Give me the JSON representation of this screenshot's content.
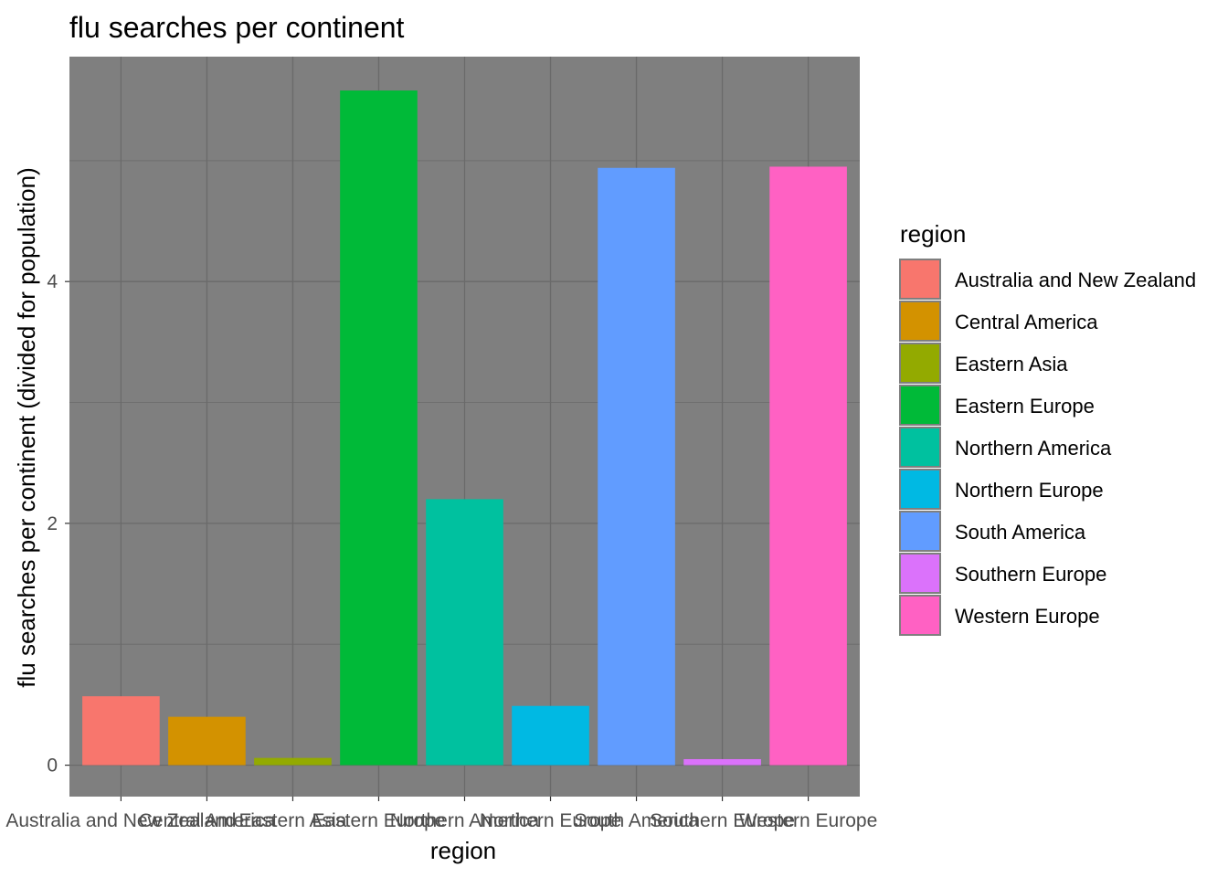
{
  "chart_data": {
    "type": "bar",
    "title": "flu searches per continent",
    "xlabel": "region",
    "ylabel": "flu searches per continent (divided for population)",
    "categories": [
      "Australia and New Zealand",
      "Central America",
      "Eastern Asia",
      "Eastern Europe",
      "Northern America",
      "Northern Europe",
      "South America",
      "Southern Europe",
      "Western Europe"
    ],
    "values": [
      0.57,
      0.4,
      0.06,
      5.58,
      2.2,
      0.49,
      4.94,
      0.05,
      4.95
    ],
    "colors": [
      "#F8766D",
      "#D39200",
      "#93AA00",
      "#00BA38",
      "#00C19F",
      "#00B9E3",
      "#619CFF",
      "#DB72FB",
      "#FF61C3"
    ],
    "yticks": [
      0,
      2,
      4
    ],
    "ylim": [
      -0.26,
      5.86
    ],
    "grid": true,
    "panel_color": "#7f7f7f",
    "legend": {
      "title": "region",
      "position": "right"
    }
  }
}
